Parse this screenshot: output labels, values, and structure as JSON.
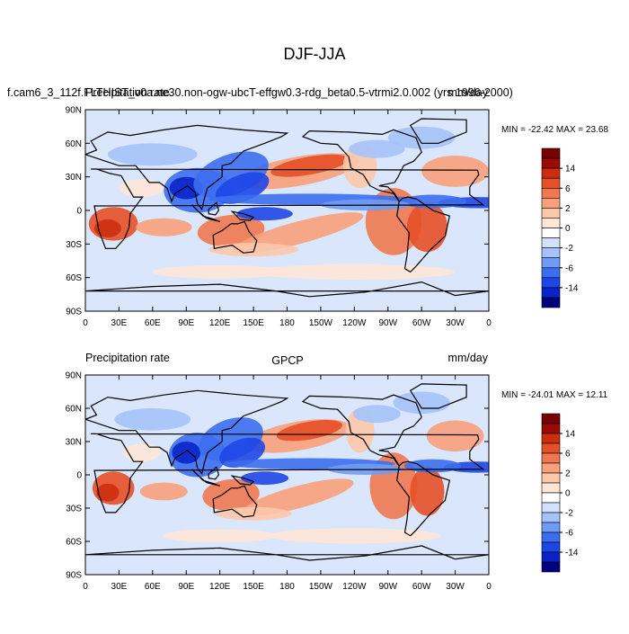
{
  "figure_title": "DJF-JJA",
  "palette": [
    "#00007f",
    "#0a23c8",
    "#1e46e6",
    "#3c6ef0",
    "#6e9bf5",
    "#a5c3fa",
    "#d2e1fc",
    "#ffffff",
    "#fde6d6",
    "#fbc8aa",
    "#f7a07a",
    "#f07850",
    "#e65028",
    "#cd2d0f",
    "#9b0a05",
    "#780000"
  ],
  "land_color": "#000000",
  "panels": [
    {
      "title_left": "f.cam6_3_112f.FLTHIST_v0a.ne30.non-ogw-ubcT-effgw0.3-rdg_beta0.5-vtrmi2.0.002 (yrs 1996-2000)",
      "title_left_overlay": "Precipitation rate",
      "title_center": "",
      "title_right": "mm/day",
      "stats": "MIN = -22.42 MAX =  23.68",
      "lat_labels": [
        "90N",
        "60N",
        "30N",
        "0",
        "30S",
        "60S",
        "90S"
      ],
      "lon_labels": [
        "0",
        "30E",
        "60E",
        "90E",
        "120E",
        "150E",
        "180",
        "150W",
        "120W",
        "90W",
        "60W",
        "30W",
        "0"
      ],
      "colorbar_labels": [
        "14",
        "6",
        "2",
        "0",
        "-2",
        "-6",
        "-14"
      ]
    },
    {
      "title_left": "Precipitation rate",
      "title_left_overlay": "",
      "title_center": "GPCP",
      "title_right": "mm/day",
      "stats": "MIN = -24.01 MAX =  12.11",
      "lat_labels": [
        "90N",
        "60N",
        "30N",
        "0",
        "30S",
        "60S",
        "90S"
      ],
      "lon_labels": [
        "0",
        "30E",
        "60E",
        "90E",
        "120E",
        "150E",
        "180",
        "150W",
        "120W",
        "90W",
        "60W",
        "30W",
        "0"
      ],
      "colorbar_labels": [
        "14",
        "6",
        "2",
        "0",
        "-2",
        "-6",
        "-14"
      ]
    }
  ]
}
